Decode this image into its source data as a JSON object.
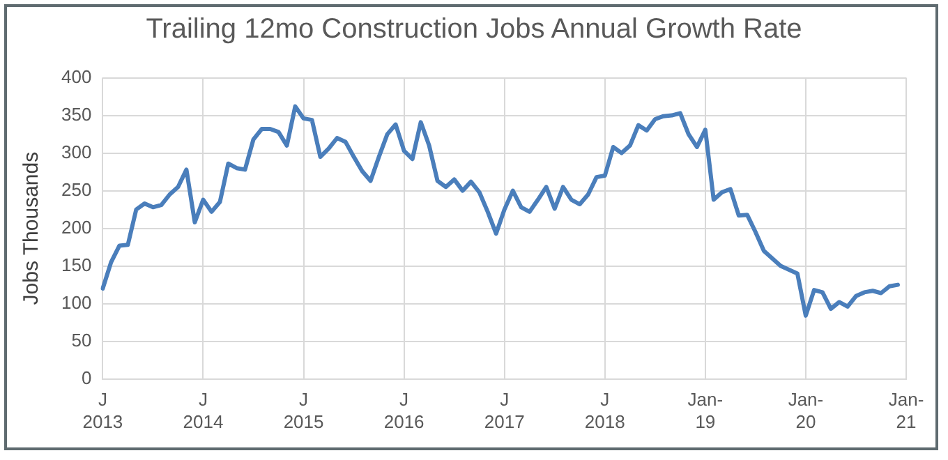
{
  "chart_data": {
    "type": "line",
    "title": "Trailing 12mo Construction Jobs Annual Growth Rate",
    "ylabel": "Jobs Thousands",
    "categories": [
      "J\n2013",
      null,
      null,
      null,
      null,
      null,
      null,
      null,
      null,
      null,
      null,
      null,
      "J\n2014",
      null,
      null,
      null,
      null,
      null,
      null,
      null,
      null,
      null,
      null,
      null,
      "J\n2015",
      null,
      null,
      null,
      null,
      null,
      null,
      null,
      null,
      null,
      null,
      null,
      "J\n2016",
      null,
      null,
      null,
      null,
      null,
      null,
      null,
      null,
      null,
      null,
      null,
      "J\n2017",
      null,
      null,
      null,
      null,
      null,
      null,
      null,
      null,
      null,
      null,
      null,
      "J\n2018",
      null,
      null,
      null,
      null,
      null,
      null,
      null,
      null,
      null,
      null,
      null,
      "Jan-\n19",
      null,
      null,
      null,
      null,
      null,
      null,
      null,
      null,
      null,
      null,
      null,
      "Jan-\n20",
      null,
      null,
      null,
      null,
      null,
      null,
      null,
      null,
      null,
      null,
      null,
      "Jan-\n21"
    ],
    "series": [
      {
        "color": "#4a7ebb",
        "values": [
          120,
          155,
          177,
          178,
          225,
          233,
          228,
          231,
          245,
          255,
          278,
          208,
          238,
          222,
          235,
          286,
          280,
          278,
          318,
          332,
          332,
          328,
          310,
          362,
          346,
          344,
          295,
          306,
          320,
          315,
          295,
          276,
          263,
          295,
          325,
          338,
          303,
          292,
          341,
          310,
          263,
          255,
          265,
          250,
          262,
          248,
          222,
          193,
          225,
          250,
          228,
          222,
          238,
          255,
          226,
          255,
          238,
          232,
          245,
          268,
          270,
          308,
          300,
          310,
          337,
          330,
          345,
          349,
          350,
          353,
          325,
          308,
          331,
          238,
          248,
          252,
          217,
          218,
          195,
          170,
          160,
          150,
          145,
          140,
          84,
          118,
          115,
          93,
          102,
          96,
          110,
          115,
          117,
          114,
          123,
          125,
          null
        ]
      }
    ],
    "ylim": [
      0,
      400
    ],
    "yticks": [
      0,
      50,
      100,
      150,
      200,
      250,
      300,
      350,
      400
    ],
    "grid": true,
    "marker": "none",
    "line_style": "solid"
  }
}
